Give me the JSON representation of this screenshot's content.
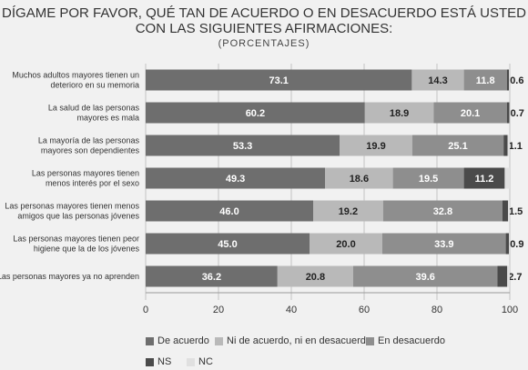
{
  "title_line1": "DÍGAME POR FAVOR, QUÉ TAN DE ACUERDO O EN DESACUERDO ESTÁ USTED",
  "title_line2": "CON LAS SIGUIENTES AFIRMACIONES:",
  "subtitle": "(PORCENTAJES)",
  "colors": {
    "de_acuerdo": "#6e6e6e",
    "ni": "#b9b9b9",
    "desacuerdo": "#8e8e8e",
    "ns": "#4a4a4a",
    "nc": "#e0e0e0"
  },
  "legend": [
    {
      "label": "De acuerdo",
      "color_key": "de_acuerdo"
    },
    {
      "label": "Ni de acuerdo, ni en desacuerdo",
      "color_key": "ni"
    },
    {
      "label": "En desacuerdo",
      "color_key": "desacuerdo"
    },
    {
      "label": "NS",
      "color_key": "ns"
    },
    {
      "label": "NC",
      "color_key": "nc"
    }
  ],
  "chart_data": {
    "type": "bar",
    "orientation": "horizontal",
    "stacked": true,
    "categories": [
      [
        "Muchos adultos mayores tienen un",
        "deterioro en su memoria"
      ],
      [
        "La salud de las personas",
        "mayores es mala"
      ],
      [
        "La mayoría de las personas",
        "mayores son dependientes"
      ],
      [
        "Las personas mayores tienen",
        "menos interés por el sexo"
      ],
      [
        "Las personas mayores tienen menos",
        "amigos que las personas jóvenes"
      ],
      [
        "Las personas mayores tienen peor",
        "higiene que la de los jóvenes"
      ],
      [
        "Las personas mayores ya no aprenden"
      ]
    ],
    "series": [
      {
        "name": "De acuerdo",
        "color_key": "de_acuerdo",
        "values": [
          73.1,
          60.2,
          53.3,
          49.3,
          46.0,
          45.0,
          36.2
        ],
        "labels": [
          "73.1",
          "60.2",
          "53.3",
          "49.3",
          "46.0",
          "45.0",
          "36.2"
        ]
      },
      {
        "name": "Ni de acuerdo, ni en desacuerdo",
        "color_key": "ni",
        "values": [
          14.3,
          18.9,
          19.9,
          18.6,
          19.2,
          20.0,
          20.8
        ],
        "labels": [
          "14.3",
          "18.9",
          "19.9",
          "18.6",
          "19.2",
          "20.0",
          "20.8"
        ]
      },
      {
        "name": "En desacuerdo",
        "color_key": "desacuerdo",
        "values": [
          11.8,
          20.1,
          25.1,
          19.5,
          32.8,
          33.9,
          39.6
        ],
        "labels": [
          "11.8",
          "20.1",
          "25.1",
          "19.5",
          "32.8",
          "33.9",
          "39.6"
        ]
      },
      {
        "name": "NS",
        "color_key": "ns",
        "values": [
          0.6,
          0.7,
          1.1,
          11.2,
          1.5,
          0.9,
          2.7
        ],
        "labels": [
          "0.6",
          "0.7",
          "1.1",
          "11.2",
          "1.5",
          "0.9",
          "2.7"
        ]
      },
      {
        "name": "NC",
        "color_key": "nc",
        "values": [
          0.2,
          0.1,
          0.6,
          1.4,
          0.5,
          0.2,
          0.7
        ],
        "labels": [
          "",
          "",
          "",
          "",
          "",
          "",
          ""
        ]
      }
    ],
    "xlim": [
      0,
      100
    ],
    "xticks": [
      0,
      20,
      40,
      60,
      80,
      100
    ],
    "grid": true,
    "legend_placement": "bottom"
  }
}
